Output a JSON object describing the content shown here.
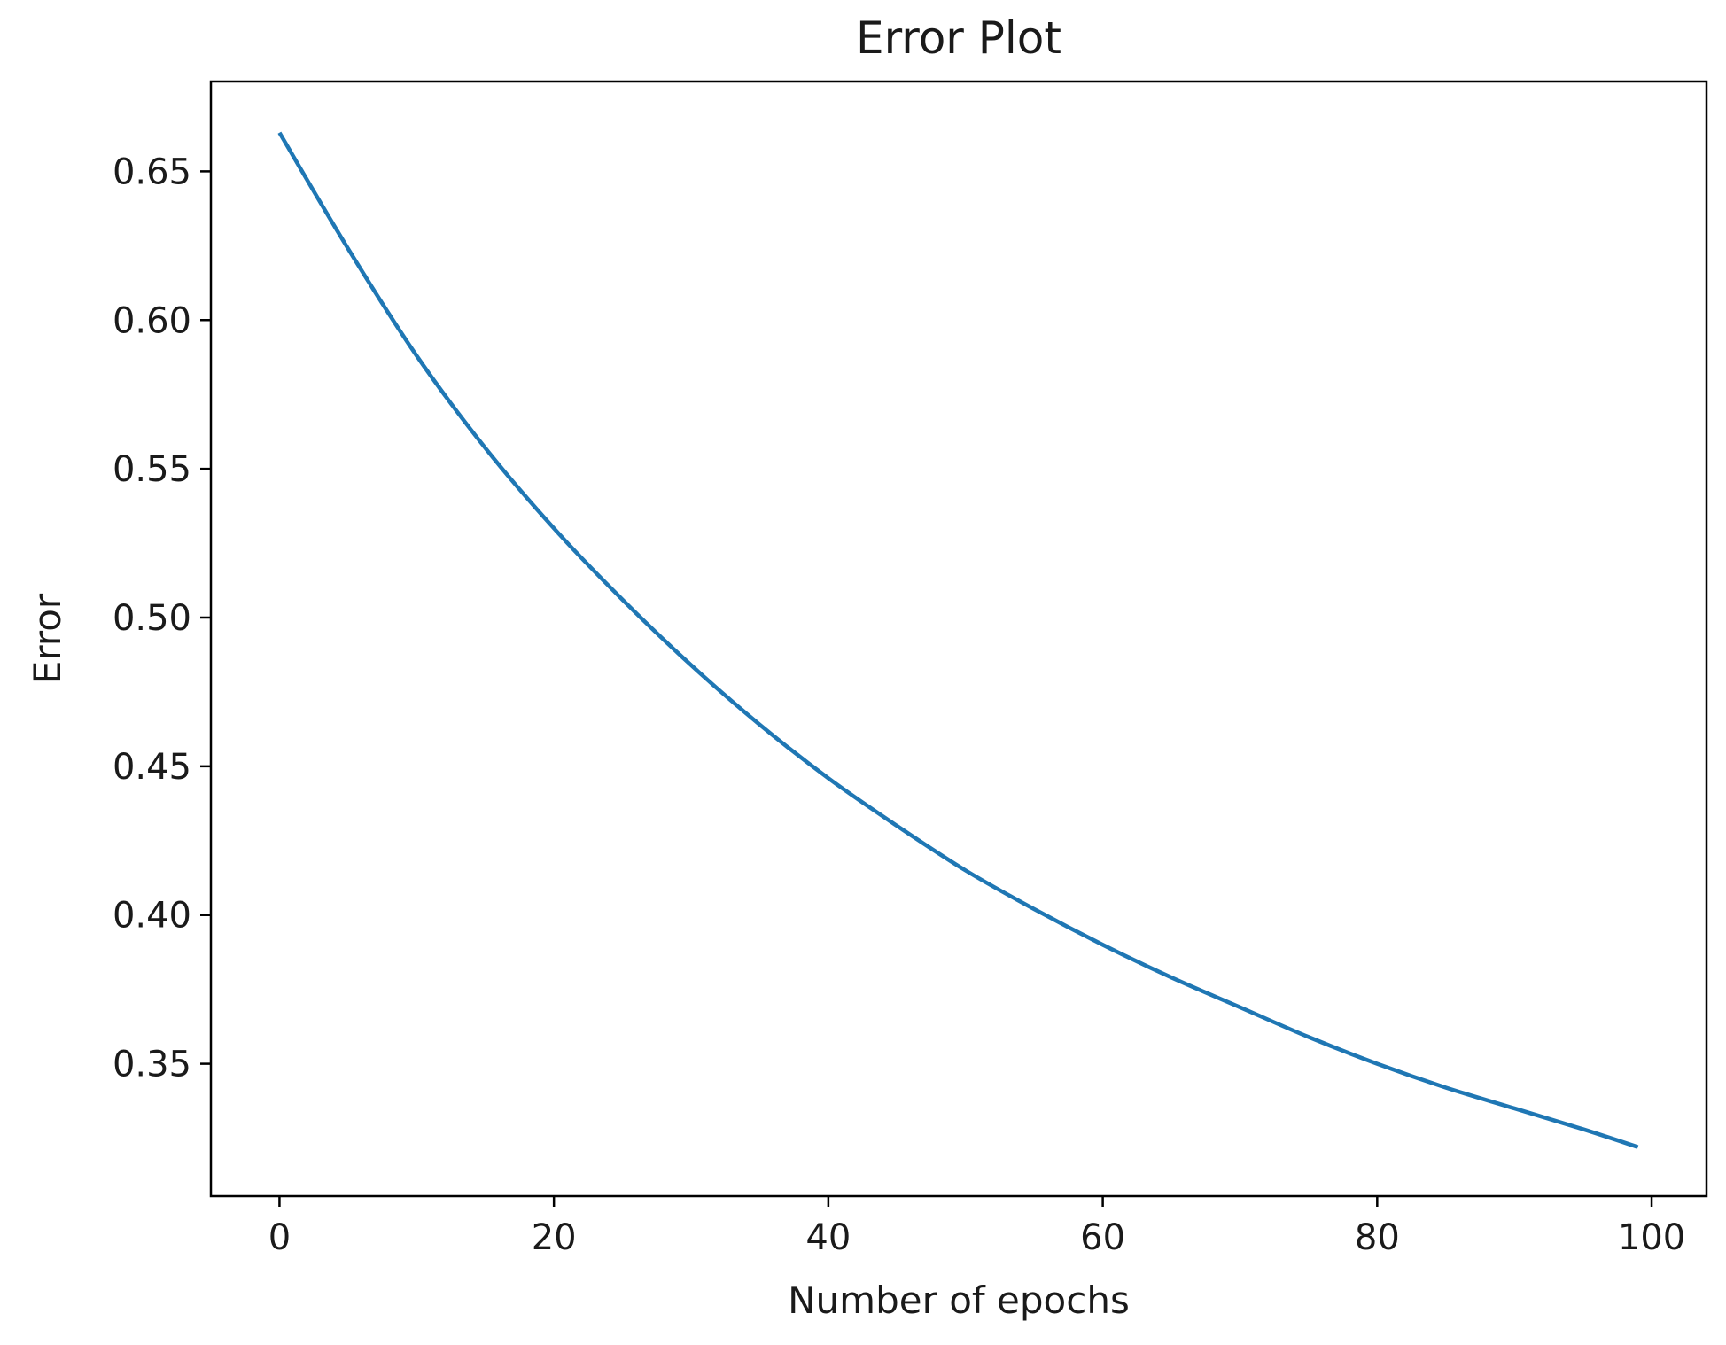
{
  "chart_data": {
    "type": "line",
    "title": "Error Plot",
    "xlabel": "Number of epochs",
    "ylabel": "Error",
    "xlim": [
      -5,
      104
    ],
    "ylim": [
      0.3055,
      0.6802
    ],
    "xticks": [
      0,
      20,
      40,
      60,
      80,
      100
    ],
    "xtick_labels": [
      "0",
      "20",
      "40",
      "60",
      "80",
      "100"
    ],
    "yticks": [
      0.35,
      0.4,
      0.45,
      0.5,
      0.55,
      0.6,
      0.65
    ],
    "ytick_labels": [
      "0.35",
      "0.40",
      "0.45",
      "0.50",
      "0.55",
      "0.60",
      "0.65"
    ],
    "grid": false,
    "colors": {
      "line": "#1f77b4",
      "axes": "#000000",
      "text": "#1a1a1a"
    },
    "series": [
      {
        "x": [
          0,
          5,
          10,
          15,
          20,
          25,
          30,
          35,
          40,
          45,
          50,
          55,
          60,
          65,
          70,
          75,
          80,
          85,
          90,
          95,
          99
        ],
        "y": [
          0.663,
          0.624,
          0.588,
          0.557,
          0.53,
          0.506,
          0.484,
          0.464,
          0.446,
          0.43,
          0.415,
          0.402,
          0.39,
          0.379,
          0.369,
          0.359,
          0.35,
          0.342,
          0.335,
          0.328,
          0.322
        ]
      }
    ]
  }
}
